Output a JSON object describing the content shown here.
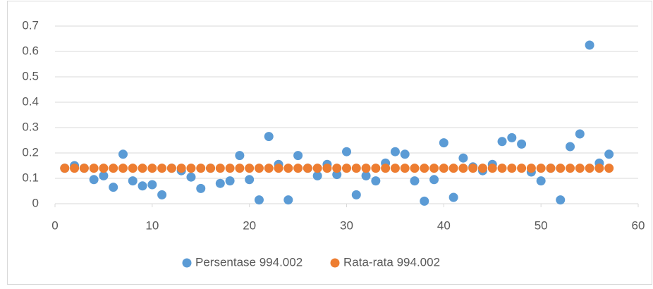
{
  "chart_data": {
    "type": "scatter",
    "x": [
      1,
      2,
      3,
      4,
      5,
      6,
      7,
      8,
      9,
      10,
      11,
      12,
      13,
      14,
      15,
      16,
      17,
      18,
      19,
      20,
      21,
      22,
      23,
      24,
      25,
      26,
      27,
      28,
      29,
      30,
      31,
      32,
      33,
      34,
      35,
      36,
      37,
      38,
      39,
      40,
      41,
      42,
      43,
      44,
      45,
      46,
      47,
      48,
      49,
      50,
      51,
      52,
      53,
      54,
      55,
      56,
      57
    ],
    "series": [
      {
        "name": "Persentase 994.002",
        "color": "#5b9bd5",
        "values": [
          0.14,
          0.15,
          0.14,
          0.095,
          0.11,
          0.065,
          0.195,
          0.09,
          0.07,
          0.075,
          0.035,
          0.14,
          0.13,
          0.105,
          0.06,
          0.14,
          0.08,
          0.09,
          0.19,
          0.095,
          0.015,
          0.265,
          0.155,
          0.015,
          0.19,
          0.14,
          0.11,
          0.155,
          0.115,
          0.205,
          0.035,
          0.11,
          0.09,
          0.16,
          0.205,
          0.195,
          0.09,
          0.01,
          0.095,
          0.24,
          0.025,
          0.18,
          0.145,
          0.13,
          0.155,
          0.245,
          0.26,
          0.235,
          0.125,
          0.09,
          0.14,
          0.015,
          0.225,
          0.275,
          0.625,
          0.16,
          0.195
        ]
      },
      {
        "name": "Rata-rata 994.002",
        "color": "#ed7d31",
        "values": [
          0.14,
          0.14,
          0.14,
          0.14,
          0.14,
          0.14,
          0.14,
          0.14,
          0.14,
          0.14,
          0.14,
          0.14,
          0.14,
          0.14,
          0.14,
          0.14,
          0.14,
          0.14,
          0.14,
          0.14,
          0.14,
          0.14,
          0.14,
          0.14,
          0.14,
          0.14,
          0.14,
          0.14,
          0.14,
          0.14,
          0.14,
          0.14,
          0.14,
          0.14,
          0.14,
          0.14,
          0.14,
          0.14,
          0.14,
          0.14,
          0.14,
          0.14,
          0.14,
          0.14,
          0.14,
          0.14,
          0.14,
          0.14,
          0.14,
          0.14,
          0.14,
          0.14,
          0.14,
          0.14,
          0.14,
          0.14,
          0.14
        ]
      }
    ],
    "xlim": [
      0,
      60
    ],
    "xticks": [
      0,
      10,
      20,
      30,
      40,
      50,
      60
    ],
    "ylim": [
      0,
      0.7
    ],
    "yticks": [
      0,
      0.1,
      0.2,
      0.3,
      0.4,
      0.5,
      0.6,
      0.7
    ],
    "grid": true,
    "legend": "bottom"
  }
}
